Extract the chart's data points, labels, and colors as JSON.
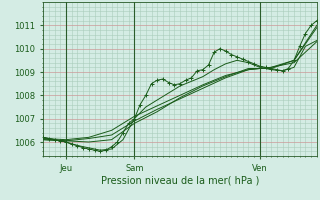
{
  "bg_color": "#d4ece4",
  "plot_bg_color": "#d4ece4",
  "grid_color_major": "#cc9999",
  "grid_color_minor": "#aaccbb",
  "line_color": "#1a5c1a",
  "marker_color": "#1a5c1a",
  "xlabel": "Pression niveau de la mer( hPa )",
  "yticks": [
    1006,
    1007,
    1008,
    1009,
    1010,
    1011
  ],
  "ylim": [
    1005.4,
    1011.6
  ],
  "xlim": [
    0,
    96
  ],
  "xtick_positions": [
    8,
    32,
    76
  ],
  "xtick_labels": [
    "Jeu",
    "Sam",
    "Ven"
  ],
  "vline_positions": [
    8,
    32,
    76
  ],
  "series": [
    {
      "x": [
        0,
        2,
        4,
        6,
        8,
        10,
        12,
        14,
        16,
        18,
        20,
        22,
        24,
        26,
        28,
        30,
        32,
        34,
        36,
        38,
        40,
        42,
        44,
        46,
        48,
        50,
        52,
        54,
        56,
        58,
        60,
        62,
        64,
        66,
        68,
        70,
        72,
        74,
        76,
        78,
        80,
        82,
        84,
        86,
        88,
        90,
        92,
        94,
        96
      ],
      "y": [
        1006.2,
        1006.15,
        1006.1,
        1006.05,
        1006.0,
        1005.9,
        1005.85,
        1005.75,
        1005.7,
        1005.65,
        1005.6,
        1005.65,
        1005.8,
        1006.0,
        1006.4,
        1006.8,
        1007.0,
        1007.6,
        1008.0,
        1008.5,
        1008.65,
        1008.7,
        1008.55,
        1008.45,
        1008.5,
        1008.65,
        1008.75,
        1009.05,
        1009.1,
        1009.3,
        1009.85,
        1010.0,
        1009.9,
        1009.75,
        1009.65,
        1009.55,
        1009.45,
        1009.35,
        1009.25,
        1009.2,
        1009.15,
        1009.1,
        1009.05,
        1009.15,
        1009.5,
        1010.1,
        1010.65,
        1011.0,
        1011.2
      ],
      "marker": "+"
    },
    {
      "x": [
        0,
        4,
        8,
        12,
        16,
        20,
        24,
        28,
        32,
        36,
        40,
        44,
        48,
        52,
        56,
        60,
        64,
        68,
        72,
        76,
        80,
        84,
        88,
        92,
        96
      ],
      "y": [
        1006.2,
        1006.1,
        1006.0,
        1005.85,
        1005.75,
        1005.65,
        1005.7,
        1006.1,
        1007.0,
        1007.5,
        1007.8,
        1008.1,
        1008.4,
        1008.6,
        1008.8,
        1009.1,
        1009.35,
        1009.5,
        1009.4,
        1009.2,
        1009.1,
        1009.05,
        1009.2,
        1010.1,
        1010.35
      ],
      "marker": null
    },
    {
      "x": [
        0,
        8,
        16,
        24,
        32,
        40,
        48,
        56,
        64,
        72,
        80,
        88,
        96
      ],
      "y": [
        1006.1,
        1006.05,
        1006.0,
        1006.1,
        1006.8,
        1007.3,
        1007.9,
        1008.4,
        1008.8,
        1009.15,
        1009.15,
        1009.5,
        1011.0
      ],
      "marker": null
    },
    {
      "x": [
        0,
        8,
        16,
        24,
        32,
        40,
        48,
        56,
        64,
        72,
        80,
        88,
        96
      ],
      "y": [
        1006.1,
        1006.05,
        1006.15,
        1006.3,
        1006.9,
        1007.4,
        1007.85,
        1008.3,
        1008.75,
        1009.1,
        1009.2,
        1009.5,
        1010.9
      ],
      "marker": null
    },
    {
      "x": [
        0,
        8,
        16,
        24,
        32,
        40,
        48,
        56,
        64,
        72,
        80,
        88,
        96
      ],
      "y": [
        1006.15,
        1006.1,
        1006.2,
        1006.5,
        1007.1,
        1007.55,
        1008.0,
        1008.45,
        1008.85,
        1009.1,
        1009.2,
        1009.4,
        1010.3
      ],
      "marker": null
    }
  ]
}
